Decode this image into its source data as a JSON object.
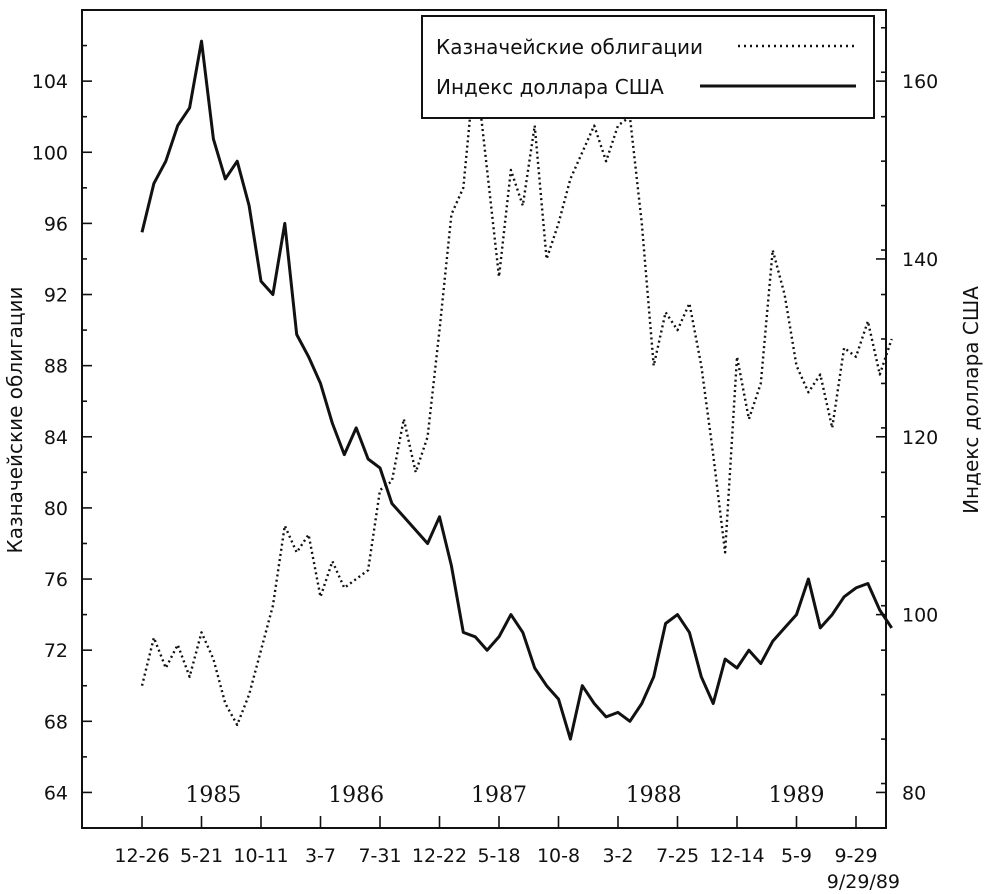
{
  "chart_data": {
    "type": "line",
    "y_left": {
      "label": "Казначейские облигации",
      "range": [
        62,
        108
      ],
      "ticks": [
        64,
        68,
        72,
        76,
        80,
        84,
        88,
        92,
        96,
        100,
        104
      ]
    },
    "y_right": {
      "label": "Индекс доллара США",
      "range": [
        76,
        168
      ],
      "ticks": [
        80,
        100,
        120,
        140,
        160
      ]
    },
    "x": {
      "tick_labels": [
        "12-26",
        "5-21",
        "10-11",
        "3-7",
        "7-31",
        "12-22",
        "5-18",
        "10-8",
        "3-2",
        "7-25",
        "12-14",
        "5-9",
        "9-29"
      ],
      "year_labels": [
        "1985",
        "1986",
        "1987",
        "1988",
        "1989"
      ],
      "end_label": "9/29/89"
    },
    "legend": {
      "position": "top-right",
      "entries": [
        {
          "label": "Казначейские облигации",
          "style": "dotted"
        },
        {
          "label": "Индекс доллара США",
          "style": "solid"
        }
      ]
    },
    "series": [
      {
        "name": "Казначейские облигации",
        "axis": "left",
        "style": "dotted",
        "x": [
          0,
          0.2,
          0.4,
          0.6,
          0.8,
          1.0,
          1.2,
          1.4,
          1.6,
          1.8,
          2.0,
          2.2,
          2.4,
          2.6,
          2.8,
          3.0,
          3.2,
          3.4,
          3.6,
          3.8,
          4.0,
          4.2,
          4.4,
          4.6,
          4.8,
          5.0,
          5.2,
          5.4,
          5.6,
          5.8,
          6.0,
          6.2,
          6.4,
          6.6,
          6.8,
          7.0,
          7.2,
          7.4,
          7.6,
          7.8,
          8.0,
          8.2,
          8.4,
          8.6,
          8.8,
          9.0,
          9.2,
          9.4,
          9.6,
          9.8,
          10.0,
          10.2,
          10.4,
          10.6,
          10.8,
          11.0,
          11.2,
          11.4,
          11.6,
          11.8,
          12.0,
          12.2,
          12.4,
          12.6
        ],
        "values": [
          70.0,
          72.7,
          71.0,
          72.3,
          70.5,
          73.0,
          71.5,
          69.0,
          67.8,
          69.5,
          72.0,
          74.5,
          79.0,
          77.5,
          78.5,
          75.0,
          77.0,
          75.5,
          76.0,
          76.5,
          81.0,
          81.5,
          85.0,
          82.0,
          84.0,
          90.0,
          96.5,
          98.0,
          105.0,
          99.0,
          93.0,
          99.0,
          97.0,
          101.5,
          94.0,
          96.0,
          98.5,
          100.0,
          101.5,
          99.5,
          101.5,
          102.0,
          96.0,
          88.0,
          91.0,
          90.0,
          91.5,
          88.0,
          83.0,
          77.5,
          88.5,
          85.0,
          87.0,
          94.5,
          92.0,
          88.0,
          86.5,
          87.5,
          84.5,
          89.0,
          88.5,
          90.5,
          87.5,
          89.5
        ]
      },
      {
        "name": "Индекс доллара США",
        "axis": "right",
        "style": "solid",
        "x": [
          0,
          0.2,
          0.4,
          0.6,
          0.8,
          1.0,
          1.2,
          1.4,
          1.6,
          1.8,
          2.0,
          2.2,
          2.4,
          2.6,
          2.8,
          3.0,
          3.2,
          3.4,
          3.6,
          3.8,
          4.0,
          4.2,
          4.4,
          4.6,
          4.8,
          5.0,
          5.2,
          5.4,
          5.6,
          5.8,
          6.0,
          6.2,
          6.4,
          6.6,
          6.8,
          7.0,
          7.2,
          7.4,
          7.6,
          7.8,
          8.0,
          8.2,
          8.4,
          8.6,
          8.8,
          9.0,
          9.2,
          9.4,
          9.6,
          9.8,
          10.0,
          10.2,
          10.4,
          10.6,
          10.8,
          11.0,
          11.2,
          11.4,
          11.6,
          11.8,
          12.0,
          12.2,
          12.4,
          12.6
        ],
        "values": [
          143.0,
          148.5,
          151.0,
          155.0,
          157.0,
          164.5,
          153.5,
          149.0,
          151.0,
          146.0,
          137.5,
          136.0,
          144.0,
          131.5,
          129.0,
          126.0,
          121.5,
          118.0,
          121.0,
          117.5,
          116.5,
          112.5,
          111.0,
          109.5,
          108.0,
          111.0,
          105.5,
          98.0,
          97.5,
          96.0,
          97.5,
          100.0,
          98.0,
          94.0,
          92.0,
          90.5,
          86.0,
          92.0,
          90.0,
          88.5,
          89.0,
          88.0,
          90.0,
          93.0,
          99.0,
          100.0,
          98.0,
          93.0,
          90.0,
          95.0,
          94.0,
          96.0,
          94.5,
          97.0,
          98.5,
          100.0,
          104.0,
          98.5,
          100.0,
          102.0,
          103.0,
          103.5,
          100.5,
          98.5
        ]
      }
    ]
  }
}
